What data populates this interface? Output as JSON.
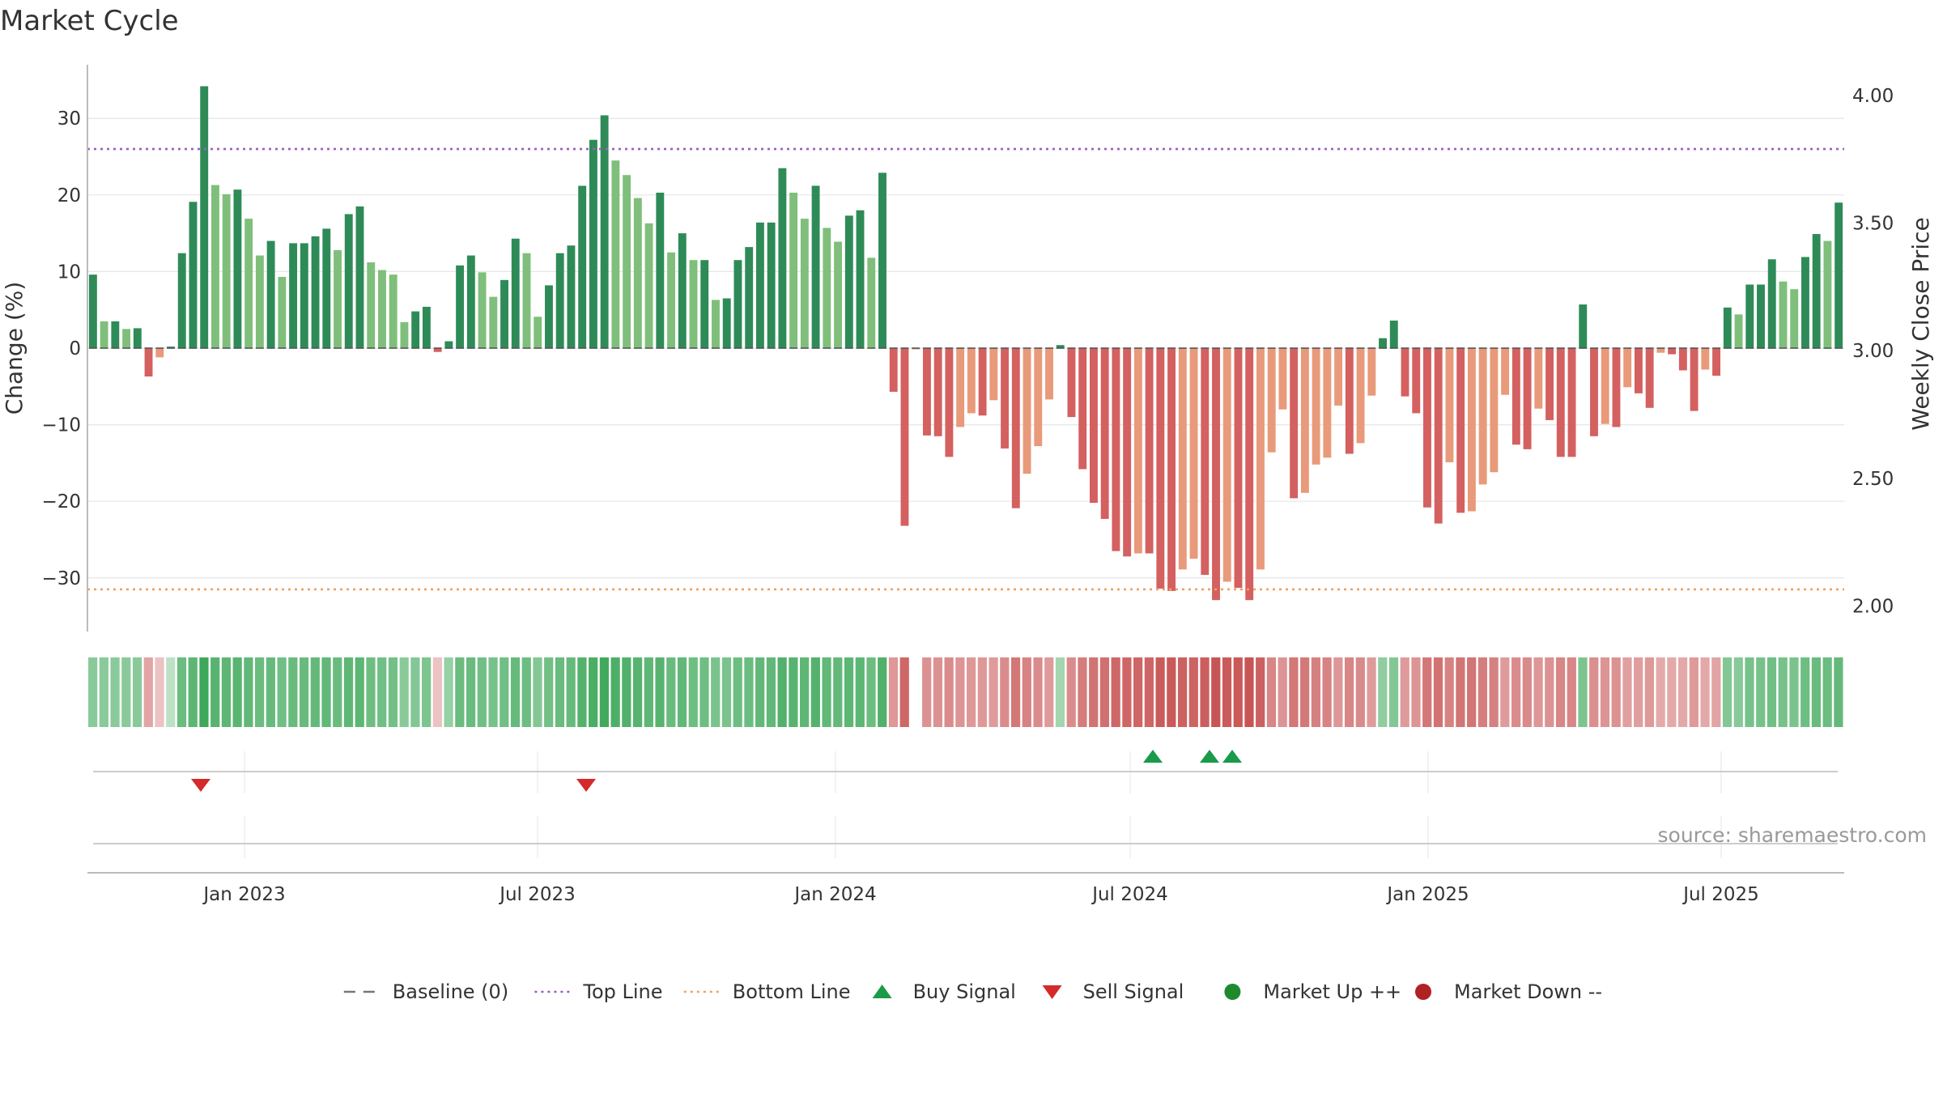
{
  "chart_data": {
    "type": "bar",
    "title": "Market Cycle",
    "ylabel": "Change (%)",
    "ylabel_right": "Weekly Close Price",
    "ylim": [
      -37,
      37
    ],
    "ylim_right": [
      1.9,
      4.12
    ],
    "yticks": [
      30,
      20,
      10,
      0,
      -10,
      -20,
      -30
    ],
    "yticks_right": [
      4.0,
      3.5,
      3.0,
      2.5,
      2.0
    ],
    "yticks_right_labels": [
      "4.00",
      "3.50",
      "3.00",
      "2.50",
      "2.00"
    ],
    "x_range": [
      "2022-09-26",
      "2025-09-15"
    ],
    "x_ticks": [
      {
        "date": "2023-01-01",
        "label": "Jan 2023"
      },
      {
        "date": "2023-07-01",
        "label": "Jul 2023"
      },
      {
        "date": "2024-01-01",
        "label": "Jan 2024"
      },
      {
        "date": "2024-07-01",
        "label": "Jul 2024"
      },
      {
        "date": "2025-01-01",
        "label": "Jan 2025"
      },
      {
        "date": "2025-07-01",
        "label": "Jul 2025"
      }
    ],
    "top_line": 26,
    "bottom_line": -31.5,
    "grid": true,
    "legend_position": "bottom",
    "weeks_start": "2022-09-26",
    "series": [
      {
        "values": [
          9.6,
          3.5,
          3.5,
          2.5,
          2.6,
          -3.7,
          -1.2,
          0.2,
          12.4,
          19.1,
          34.2,
          21.3,
          20.1,
          20.7,
          16.9,
          12.1,
          14.0,
          9.3,
          13.7,
          13.7,
          14.6,
          15.6,
          12.8,
          17.5,
          18.5,
          11.2,
          10.2,
          9.6,
          3.4,
          4.8,
          5.4,
          -0.5,
          0.9,
          10.8,
          12.1,
          9.9,
          6.7,
          8.9,
          14.3,
          12.4,
          4.1,
          8.2,
          12.4,
          13.4,
          21.2,
          27.2,
          30.4,
          24.5,
          22.6,
          19.6,
          16.3,
          20.3,
          12.5,
          15.0,
          11.5,
          11.5,
          6.3,
          6.5,
          11.5,
          13.2,
          16.4,
          16.4,
          23.5,
          20.3,
          16.9,
          21.2,
          15.7,
          13.9,
          17.3,
          18.0,
          11.8,
          22.9,
          -5.7,
          -23.2,
          -0.1,
          -11.4,
          -11.5,
          -14.2,
          -10.3,
          -8.5,
          -8.8,
          -6.8,
          -13.1,
          -20.9,
          -16.4,
          -12.8,
          -6.7,
          0.4,
          -9.0,
          -15.8,
          -20.2,
          -22.3,
          -26.5,
          -27.2,
          -26.8,
          -26.8,
          -31.4,
          -31.7,
          -28.9,
          -27.5,
          -29.6,
          -32.9,
          -30.5,
          -31.3,
          -32.9,
          -28.9,
          -13.6,
          -8.0,
          -19.6,
          -18.9,
          -15.2,
          -14.3,
          -7.5,
          -13.8,
          -12.4,
          -6.2,
          1.3,
          3.6,
          -6.3,
          -8.5,
          -20.8,
          -22.9,
          -14.9,
          -21.5,
          -21.3,
          -17.8,
          -16.2,
          -6.1,
          -12.6,
          -13.2,
          -7.9,
          -9.4,
          -14.2,
          -14.2,
          5.7,
          -11.5,
          -9.9,
          -10.3,
          -5.1,
          -5.9,
          -7.8,
          -0.6,
          -0.8,
          -2.9,
          -8.2,
          -2.8,
          -3.6,
          5.3,
          4.4,
          8.3,
          8.3,
          11.6,
          8.7,
          7.7,
          11.9,
          14.9,
          14.0,
          19.0
        ]
      }
    ],
    "heat_strip_levels": [
      0.4,
      0.4,
      0.4,
      0.4,
      0.4,
      -0.35,
      -0.1,
      0.0,
      0.65,
      0.75,
      1.0,
      0.8,
      0.75,
      0.78,
      0.72,
      0.65,
      0.68,
      0.6,
      0.67,
      0.67,
      0.7,
      0.72,
      0.66,
      0.74,
      0.76,
      0.62,
      0.6,
      0.58,
      0.4,
      0.45,
      0.5,
      -0.1,
      0.3,
      0.65,
      0.66,
      0.6,
      0.55,
      0.6,
      0.68,
      0.64,
      0.45,
      0.58,
      0.66,
      0.68,
      0.82,
      0.9,
      0.98,
      0.88,
      0.85,
      0.8,
      0.74,
      0.8,
      0.66,
      0.72,
      0.62,
      0.62,
      0.52,
      0.52,
      0.62,
      0.65,
      0.72,
      0.72,
      0.84,
      0.8,
      0.74,
      0.82,
      0.72,
      0.7,
      0.76,
      0.76,
      0.64,
      0.85,
      -0.45,
      -0.85,
      null,
      -0.5,
      -0.5,
      -0.55,
      -0.48,
      -0.45,
      -0.45,
      -0.42,
      -0.55,
      -0.72,
      -0.62,
      -0.55,
      -0.42,
      0.2,
      -0.55,
      -0.68,
      -0.75,
      -0.78,
      -0.85,
      -0.86,
      -0.86,
      -0.86,
      -0.95,
      -0.96,
      -0.9,
      -0.88,
      -0.92,
      -1.0,
      -0.95,
      -0.96,
      -1.0,
      -0.9,
      -0.6,
      -0.48,
      -0.72,
      -0.7,
      -0.64,
      -0.62,
      -0.46,
      -0.6,
      -0.56,
      -0.42,
      0.35,
      0.45,
      -0.42,
      -0.48,
      -0.72,
      -0.76,
      -0.62,
      -0.74,
      -0.74,
      -0.66,
      -0.64,
      -0.42,
      -0.55,
      -0.56,
      -0.46,
      -0.5,
      -0.6,
      -0.6,
      0.5,
      -0.52,
      -0.48,
      -0.5,
      -0.38,
      -0.4,
      -0.44,
      -0.3,
      -0.3,
      -0.32,
      -0.44,
      -0.32,
      -0.35,
      0.45,
      0.42,
      0.55,
      0.55,
      0.6,
      0.55,
      0.52,
      0.62,
      0.66,
      0.64,
      0.7
    ],
    "buy_signals": [
      "2024-07-15",
      "2024-08-19",
      "2024-09-02"
    ],
    "sell_signals": [
      "2022-12-05",
      "2023-07-31"
    ],
    "source_text": "source: sharemaestro.com"
  },
  "legend": [
    {
      "label": "Baseline (0)",
      "kind": "dash",
      "color": "#777777"
    },
    {
      "label": "Top Line",
      "kind": "dot",
      "color": "#9a5fc0"
    },
    {
      "label": "Bottom Line",
      "kind": "dot",
      "color": "#f0a060"
    },
    {
      "label": "Buy Signal",
      "kind": "tri-up",
      "color": "#1a9a4a"
    },
    {
      "label": "Sell Signal",
      "kind": "tri-down",
      "color": "#d42a2a"
    },
    {
      "label": "Market Up ++",
      "kind": "circle",
      "color": "#1e8a2e"
    },
    {
      "label": "Market Down --",
      "kind": "circle",
      "color": "#b02222"
    }
  ],
  "colors": {
    "up_strong": "#2e8b57",
    "up_light": "#7fbf7b",
    "down_strong": "#d46060",
    "down_light": "#e89a7a",
    "top_line": "#9a5fc0",
    "bottom_line": "#f0a060",
    "grid": "#e6e6e6",
    "axis": "#bbbbbb",
    "text": "#333333"
  }
}
